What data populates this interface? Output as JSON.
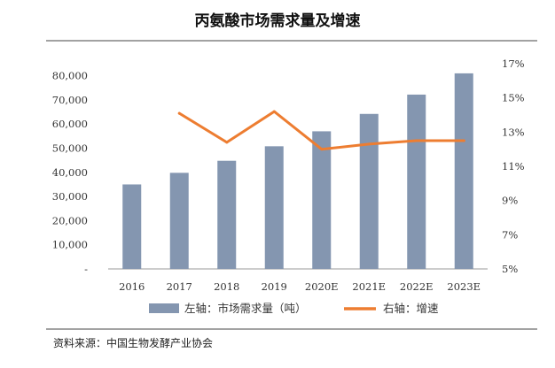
{
  "chart_data": {
    "type": "bar",
    "title": "丙氨酸市场需求量及增速",
    "categories": [
      "2016",
      "2017",
      "2018",
      "2019",
      "2020E",
      "2021E",
      "2022E",
      "2023E"
    ],
    "series": [
      {
        "name": "左轴：市场需求量（吨）",
        "type": "bar",
        "axis": "left",
        "color": "#8496B0",
        "values": [
          35000,
          39800,
          44800,
          50800,
          57000,
          64200,
          72200,
          81000
        ]
      },
      {
        "name": "右轴：增速",
        "type": "line",
        "axis": "right",
        "color": "#ED7D31",
        "values": [
          null,
          14.1,
          12.4,
          14.2,
          12.0,
          12.3,
          12.5,
          12.5
        ]
      }
    ],
    "y_left": {
      "lim": [
        0,
        85000
      ],
      "ticks": [
        0,
        10000,
        20000,
        30000,
        40000,
        50000,
        60000,
        70000,
        80000
      ],
      "tick_labels": [
        "-",
        "10,000",
        "20,000",
        "30,000",
        "40,000",
        "50,000",
        "60,000",
        "70,000",
        "80,000"
      ]
    },
    "y_right": {
      "lim": [
        5,
        17
      ],
      "ticks": [
        5,
        7,
        9,
        11,
        13,
        15,
        17
      ],
      "tick_labels": [
        "5%",
        "7%",
        "9%",
        "11%",
        "13%",
        "15%",
        "17%"
      ]
    },
    "grid": false,
    "legend_position": "bottom"
  },
  "source": {
    "text": "资料来源：中国生物发酵产业协会"
  }
}
